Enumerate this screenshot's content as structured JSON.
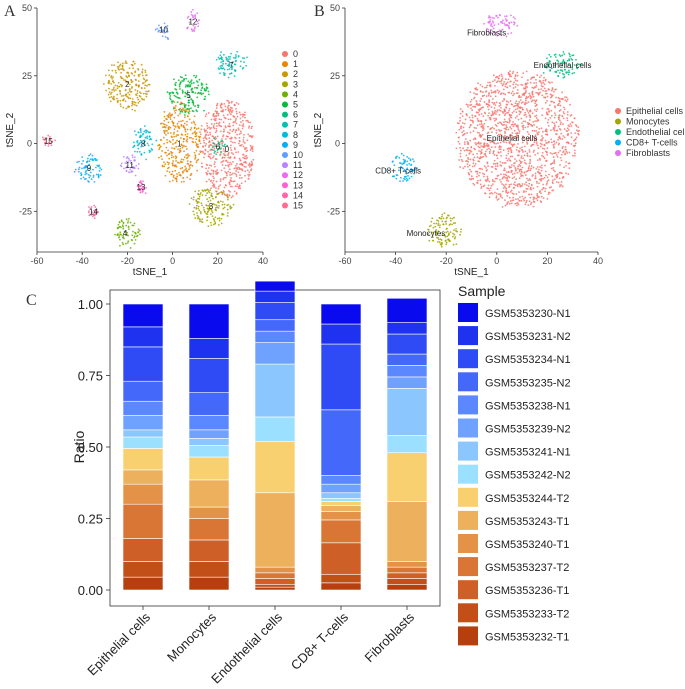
{
  "chart_data": [
    {
      "panel": "A",
      "type": "scatter",
      "xlabel": "tSNE_1",
      "ylabel": "tSNE_2",
      "xlim": [
        -60,
        40
      ],
      "ylim": [
        -40,
        50
      ],
      "xticks": [
        -60,
        -40,
        -20,
        0,
        20,
        40
      ],
      "yticks": [
        -25,
        0,
        25,
        50
      ],
      "legend_position": "right",
      "legend": [
        {
          "label": "0",
          "color": "#F8766D"
        },
        {
          "label": "1",
          "color": "#E58700"
        },
        {
          "label": "2",
          "color": "#C99800"
        },
        {
          "label": "3",
          "color": "#A3A500"
        },
        {
          "label": "4",
          "color": "#6BB100"
        },
        {
          "label": "5",
          "color": "#00BA38"
        },
        {
          "label": "6",
          "color": "#00BF7D"
        },
        {
          "label": "7",
          "color": "#00C0AF"
        },
        {
          "label": "8",
          "color": "#00BCD8"
        },
        {
          "label": "9",
          "color": "#00B0F6"
        },
        {
          "label": "10",
          "color": "#619CFF"
        },
        {
          "label": "11",
          "color": "#B983FF"
        },
        {
          "label": "12",
          "color": "#E76BF3"
        },
        {
          "label": "13",
          "color": "#FD61D1"
        },
        {
          "label": "14",
          "color": "#FF67A4"
        },
        {
          "label": "15",
          "color": "#FF6C91"
        }
      ],
      "clusters": [
        {
          "label": "0",
          "cx": 24,
          "cy": -2,
          "rx": 12,
          "ry": 18,
          "color": "#F8766D"
        },
        {
          "label": "1",
          "cx": 3,
          "cy": 0,
          "rx": 9,
          "ry": 15,
          "color": "#E58700"
        },
        {
          "label": "2",
          "cx": -20,
          "cy": 22,
          "rx": 10,
          "ry": 9,
          "color": "#C99800"
        },
        {
          "label": "3",
          "cx": 17,
          "cy": -23,
          "rx": 9,
          "ry": 7,
          "color": "#A3A500"
        },
        {
          "label": "4",
          "cx": -21,
          "cy": -33,
          "rx": 6,
          "ry": 5,
          "color": "#6BB100"
        },
        {
          "label": "5",
          "cx": 7,
          "cy": 18,
          "rx": 9,
          "ry": 7,
          "color": "#00BA38"
        },
        {
          "label": "6",
          "cx": 20,
          "cy": -1,
          "rx": 3,
          "ry": 3,
          "color": "#00BF7D"
        },
        {
          "label": "7",
          "cx": 26,
          "cy": 29,
          "rx": 7,
          "ry": 5,
          "color": "#00C0AF"
        },
        {
          "label": "8",
          "cx": -13,
          "cy": 0,
          "rx": 5,
          "ry": 6,
          "color": "#00BCD8"
        },
        {
          "label": "9",
          "cx": -37,
          "cy": -9,
          "rx": 6,
          "ry": 5,
          "color": "#00B0F6"
        },
        {
          "label": "10",
          "cx": -4,
          "cy": 42,
          "rx": 3,
          "ry": 3,
          "color": "#619CFF"
        },
        {
          "label": "11",
          "cx": -19,
          "cy": -8,
          "rx": 4,
          "ry": 4,
          "color": "#B983FF"
        },
        {
          "label": "12",
          "cx": 9,
          "cy": 45,
          "rx": 3,
          "ry": 4,
          "color": "#E76BF3"
        },
        {
          "label": "13",
          "cx": -14,
          "cy": -16,
          "rx": 2,
          "ry": 2,
          "color": "#FD61D1"
        },
        {
          "label": "14",
          "cx": -35,
          "cy": -25,
          "rx": 2,
          "ry": 2,
          "color": "#FF67A4"
        },
        {
          "label": "15",
          "cx": -55,
          "cy": 1,
          "rx": 2,
          "ry": 2,
          "color": "#FF6C91"
        }
      ]
    },
    {
      "panel": "B",
      "type": "scatter",
      "xlabel": "tSNE_1",
      "ylabel": "tSNE_2",
      "xlim": [
        -60,
        40
      ],
      "ylim": [
        -40,
        50
      ],
      "xticks": [
        -60,
        -40,
        -20,
        0,
        20,
        40
      ],
      "yticks": [
        -25,
        0,
        25,
        50
      ],
      "legend_position": "right",
      "legend": [
        {
          "label": "Epithelial cells",
          "color": "#F8766D"
        },
        {
          "label": "Monocytes",
          "color": "#A3A500"
        },
        {
          "label": "Endothelial cells",
          "color": "#00BF7D"
        },
        {
          "label": "CD8+ T-cells",
          "color": "#00B0F6"
        },
        {
          "label": "Fibroblasts",
          "color": "#E76BF3"
        }
      ],
      "clusters": [
        {
          "label": "Epithelial cells",
          "cx": 8,
          "cy": 2,
          "rx": 24,
          "ry": 25,
          "color": "#F8766D",
          "labelpos": [
            6,
            2
          ]
        },
        {
          "label": "Monocytes",
          "cx": -21,
          "cy": -32,
          "rx": 7,
          "ry": 6,
          "color": "#A3A500",
          "labelpos": [
            -28,
            -33
          ]
        },
        {
          "label": "Endothelial cells",
          "cx": 26,
          "cy": 29,
          "rx": 7,
          "ry": 5,
          "color": "#00BF7D",
          "labelpos": [
            26,
            29
          ]
        },
        {
          "label": "CD8+ T-cells",
          "cx": -37,
          "cy": -9,
          "rx": 6,
          "ry": 5,
          "color": "#00B0F6",
          "labelpos": [
            -39,
            -10
          ]
        },
        {
          "label": "Fibroblasts",
          "cx": 2,
          "cy": 44,
          "rx": 7,
          "ry": 4,
          "color": "#E76BF3",
          "labelpos": [
            -4,
            41
          ]
        }
      ]
    },
    {
      "panel": "C",
      "type": "bar",
      "stacked": true,
      "ylabel": "Ratio",
      "xlabel": "",
      "ylim": [
        0,
        1
      ],
      "yticks": [
        "0.00",
        "0.25",
        "0.50",
        "0.75",
        "1.00"
      ],
      "categories": [
        "Epithelial cells",
        "Monocytes",
        "Endothelial cells",
        "CD8+ T-cells",
        "Fibroblasts"
      ],
      "legend_title": "Sample",
      "legend_position": "right",
      "series": [
        {
          "name": "GSM5353232-T1",
          "color": "#B5400E",
          "values": [
            0.045,
            0.045,
            0.01,
            0.025,
            0.02
          ]
        },
        {
          "name": "GSM5353233-T2",
          "color": "#C24E18",
          "values": [
            0.055,
            0.055,
            0.01,
            0.03,
            0.02
          ]
        },
        {
          "name": "GSM5353236-T1",
          "color": "#CE5F26",
          "values": [
            0.08,
            0.075,
            0.02,
            0.11,
            0.02
          ]
        },
        {
          "name": "GSM5353237-T2",
          "color": "#D97535",
          "values": [
            0.12,
            0.075,
            0.02,
            0.08,
            0.02
          ]
        },
        {
          "name": "GSM5353240-T1",
          "color": "#E49248",
          "values": [
            0.07,
            0.04,
            0.02,
            0.03,
            0.02
          ]
        },
        {
          "name": "GSM5353243-T1",
          "color": "#EDB05C",
          "values": [
            0.05,
            0.095,
            0.26,
            0.02,
            0.21
          ]
        },
        {
          "name": "GSM5353244-T2",
          "color": "#F8D070",
          "values": [
            0.075,
            0.08,
            0.18,
            0.015,
            0.17
          ]
        },
        {
          "name": "GSM5353242-N2",
          "color": "#9BE1FF",
          "values": [
            0.04,
            0.04,
            0.085,
            0.01,
            0.06
          ]
        },
        {
          "name": "GSM5353241-N1",
          "color": "#8CC6FF",
          "values": [
            0.025,
            0.025,
            0.185,
            0.02,
            0.165
          ]
        },
        {
          "name": "GSM5353239-N2",
          "color": "#6FA2FF",
          "values": [
            0.05,
            0.03,
            0.075,
            0.03,
            0.04
          ]
        },
        {
          "name": "GSM5353238-N1",
          "color": "#5C88FF",
          "values": [
            0.05,
            0.05,
            0.04,
            0.03,
            0.04
          ]
        },
        {
          "name": "GSM5353235-N2",
          "color": "#4468FA",
          "values": [
            0.07,
            0.08,
            0.04,
            0.23,
            0.04
          ]
        },
        {
          "name": "GSM5353234-N1",
          "color": "#2F4BF5",
          "values": [
            0.12,
            0.12,
            0.06,
            0.23,
            0.07
          ]
        },
        {
          "name": "GSM5353231-N2",
          "color": "#1E32F0",
          "values": [
            0.07,
            0.07,
            0.04,
            0.07,
            0.04
          ]
        },
        {
          "name": "GSM5353230-N1",
          "color": "#0A0AEE",
          "values": [
            0.08,
            0.12,
            0.035,
            0.07,
            0.085
          ]
        }
      ],
      "legend_order": [
        "GSM5353230-N1",
        "GSM5353231-N2",
        "GSM5353234-N1",
        "GSM5353235-N2",
        "GSM5353238-N1",
        "GSM5353239-N2",
        "GSM5353241-N1",
        "GSM5353242-N2",
        "GSM5353244-T2",
        "GSM5353243-T1",
        "GSM5353240-T1",
        "GSM5353237-T2",
        "GSM5353236-T1",
        "GSM5353233-T2",
        "GSM5353232-T1"
      ]
    }
  ],
  "panel_letters": {
    "a": "A",
    "b": "B",
    "c": "C"
  }
}
